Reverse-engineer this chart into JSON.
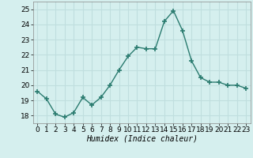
{
  "x": [
    0,
    1,
    2,
    3,
    4,
    5,
    6,
    7,
    8,
    9,
    10,
    11,
    12,
    13,
    14,
    15,
    16,
    17,
    18,
    19,
    20,
    21,
    22,
    23
  ],
  "y": [
    19.6,
    19.1,
    18.1,
    17.9,
    18.2,
    19.2,
    18.7,
    19.2,
    20.0,
    21.0,
    21.9,
    22.5,
    22.4,
    22.4,
    24.2,
    24.9,
    23.6,
    21.6,
    20.5,
    20.2,
    20.2,
    20.0,
    20.0,
    19.8
  ],
  "line_color": "#2a7b6f",
  "marker": "+",
  "marker_size": 4,
  "line_width": 1.0,
  "bg_color": "#d5efee",
  "grid_color": "#c0dede",
  "xlabel": "Humidex (Indice chaleur)",
  "ylim": [
    17.5,
    25.5
  ],
  "xlim": [
    -0.5,
    23.5
  ],
  "yticks": [
    18,
    19,
    20,
    21,
    22,
    23,
    24,
    25
  ],
  "xticks": [
    0,
    1,
    2,
    3,
    4,
    5,
    6,
    7,
    8,
    9,
    10,
    11,
    12,
    13,
    14,
    15,
    16,
    17,
    18,
    19,
    20,
    21,
    22,
    23
  ],
  "xlabel_fontsize": 7,
  "tick_fontsize": 6.5
}
